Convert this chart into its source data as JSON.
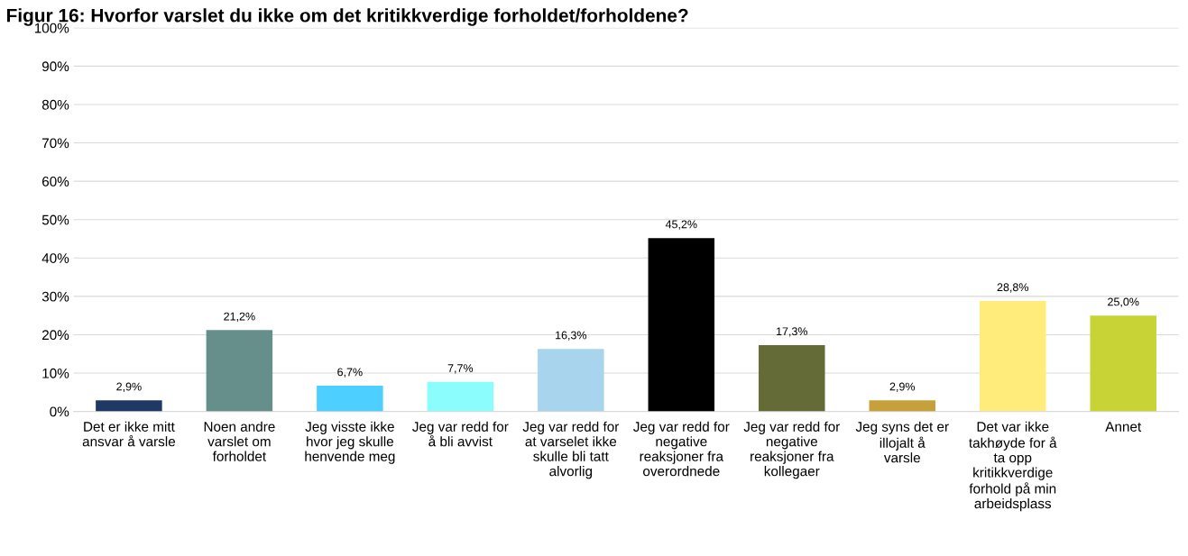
{
  "chart_data": {
    "type": "bar",
    "title": "Figur 16: Hvorfor varslet du ikke om det kritikkverdige forholdet/forholdene?",
    "categories": [
      "Det er ikke mitt ansvar å varsle",
      "Noen andre varslet om forholdet",
      "Jeg visste ikke hvor jeg skulle henvende meg",
      "Jeg var redd for å bli avvist",
      "Jeg var redd for at varselet ikke skulle bli tatt alvorlig",
      "Jeg var redd for negative reaksjoner fra overordnede",
      "Jeg var redd for negative reaksjoner fra kollegaer",
      "Jeg syns det er illojalt å varsle",
      "Det var ikke takhøyde for å ta opp kritikkverdige forhold på min arbeidsplass",
      "Annet"
    ],
    "values": [
      2.9,
      21.2,
      6.7,
      7.7,
      16.3,
      45.2,
      17.3,
      2.9,
      28.8,
      25.0
    ],
    "value_labels": [
      "2,9%",
      "21,2%",
      "6,7%",
      "7,7%",
      "16,3%",
      "45,2%",
      "17,3%",
      "2,9%",
      "28,8%",
      "25,0%"
    ],
    "colors": [
      "#1f3864",
      "#668f8c",
      "#4dcfff",
      "#8bfdfd",
      "#a9d4ee",
      "#000000",
      "#646b36",
      "#c6a03a",
      "#ffec7a",
      "#c8d435"
    ],
    "ylim": [
      0,
      100
    ],
    "yticks": [
      {
        "value": 0,
        "label": "0%"
      },
      {
        "value": 10,
        "label": "10%"
      },
      {
        "value": 20,
        "label": "20%"
      },
      {
        "value": 30,
        "label": "30%"
      },
      {
        "value": 40,
        "label": "40%"
      },
      {
        "value": 50,
        "label": "50%"
      },
      {
        "value": 60,
        "label": "60%"
      },
      {
        "value": 70,
        "label": "70%"
      },
      {
        "value": 80,
        "label": "80%"
      },
      {
        "value": 90,
        "label": "90%"
      },
      {
        "value": 100,
        "label": "100%"
      }
    ],
    "grid": "y"
  }
}
